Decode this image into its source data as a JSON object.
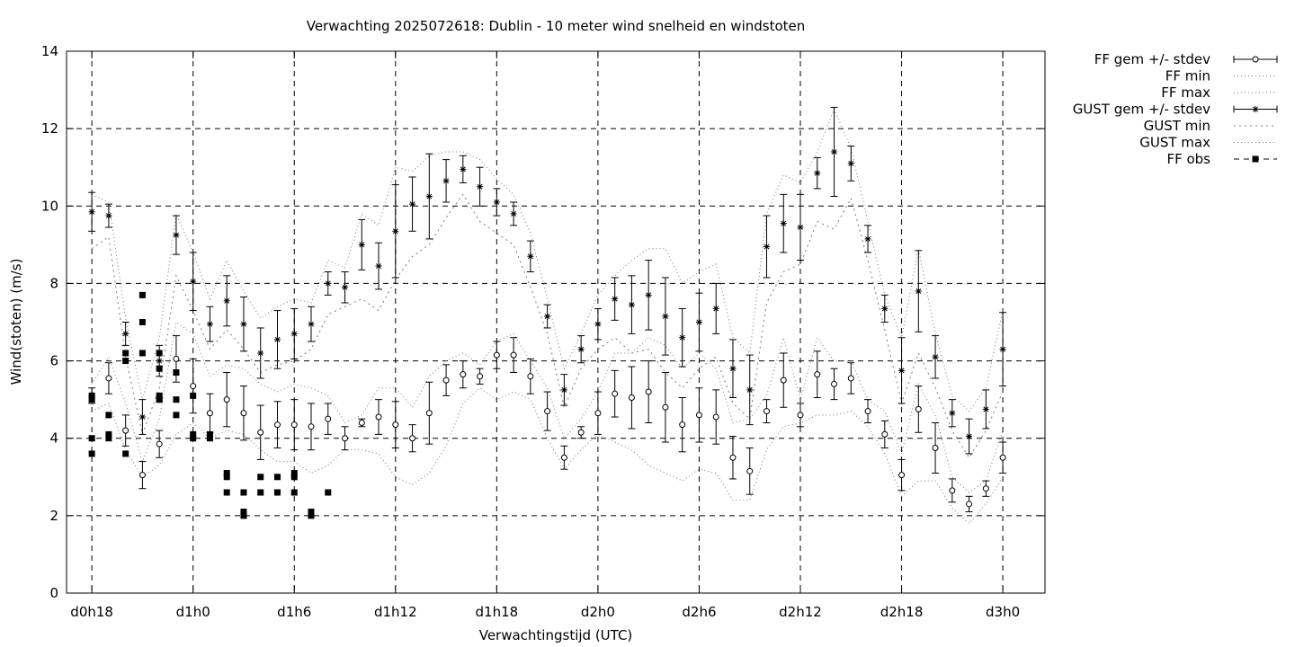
{
  "chart_data": {
    "type": "scatter",
    "title": "Verwachting 2025072618: Dublin - 10 meter wind snelheid en windstoten",
    "xlabel": "Verwachtingstijd (UTC)",
    "ylabel": "Wind(stoten) (m/s)",
    "ylim": [
      0,
      14
    ],
    "xlim": [
      -1.5,
      56.5
    ],
    "x_unit": "hours since d0h18",
    "yticks": [
      0,
      2,
      4,
      6,
      8,
      10,
      12,
      14
    ],
    "xticks": [
      {
        "x": 0,
        "label": "d0h18"
      },
      {
        "x": 6,
        "label": "d1h0"
      },
      {
        "x": 12,
        "label": "d1h6"
      },
      {
        "x": 18,
        "label": "d1h12"
      },
      {
        "x": 24,
        "label": "d1h18"
      },
      {
        "x": 30,
        "label": "d2h0"
      },
      {
        "x": 36,
        "label": "d2h6"
      },
      {
        "x": 42,
        "label": "d2h12"
      },
      {
        "x": 48,
        "label": "d2h18"
      },
      {
        "x": 54,
        "label": "d3h0"
      }
    ],
    "grid": true,
    "legend_position": "right, outside",
    "legend": [
      "FF gem +/- stdev",
      "FF min",
      "FF max",
      "GUST gem +/- stdev",
      "GUST min",
      "GUST max",
      "FF obs"
    ],
    "x": [
      0,
      1,
      2,
      3,
      4,
      5,
      6,
      7,
      8,
      9,
      10,
      11,
      12,
      13,
      14,
      15,
      16,
      17,
      18,
      19,
      20,
      21,
      22,
      23,
      24,
      25,
      26,
      27,
      28,
      29,
      30,
      31,
      32,
      33,
      34,
      35,
      36,
      37,
      38,
      39,
      40,
      41,
      42,
      43,
      44,
      45,
      46,
      47,
      48,
      49,
      50,
      51,
      52,
      53,
      54
    ],
    "series": [
      {
        "name": "FF gem +/- stdev",
        "values": [
          5.1,
          5.55,
          4.2,
          3.05,
          3.85,
          6.05,
          5.35,
          4.65,
          5.0,
          4.65,
          4.15,
          4.35,
          4.35,
          4.3,
          4.5,
          4.0,
          4.4,
          4.55,
          4.35,
          4.0,
          4.65,
          5.5,
          5.65,
          5.6,
          6.15,
          6.15,
          5.6,
          4.7,
          3.5,
          4.15,
          4.65,
          5.15,
          5.05,
          5.2,
          4.8,
          4.35,
          4.6,
          4.55,
          3.5,
          3.15,
          4.7,
          5.5,
          4.6,
          5.65,
          5.4,
          5.55,
          4.7,
          4.1,
          3.05,
          4.75,
          3.75,
          2.65,
          2.3,
          2.7,
          3.5
        ],
        "stdev": [
          0.2,
          0.4,
          0.4,
          0.35,
          0.35,
          0.6,
          0.7,
          0.5,
          0.7,
          0.7,
          0.7,
          0.6,
          0.65,
          0.6,
          0.4,
          0.3,
          0.1,
          0.45,
          0.6,
          0.35,
          0.8,
          0.4,
          0.35,
          0.2,
          0.35,
          0.45,
          0.45,
          0.5,
          0.3,
          0.15,
          0.55,
          0.6,
          0.8,
          0.8,
          0.9,
          0.7,
          0.7,
          0.7,
          0.55,
          0.6,
          0.3,
          0.7,
          0.3,
          0.6,
          0.4,
          0.4,
          0.3,
          0.35,
          0.4,
          0.6,
          0.65,
          0.3,
          0.2,
          0.2,
          0.4
        ]
      },
      {
        "name": "FF min",
        "values": [
          4.7,
          4.9,
          3.7,
          3.0,
          3.3,
          4.1,
          4.4,
          4.0,
          4.2,
          4.1,
          3.7,
          3.4,
          3.4,
          3.1,
          3.3,
          3.7,
          3.7,
          3.6,
          3.0,
          2.8,
          3.1,
          3.8,
          4.9,
          5.3,
          5.0,
          5.2,
          5.0,
          4.0,
          3.2,
          3.7,
          4.1,
          3.9,
          3.7,
          3.3,
          3.1,
          2.9,
          3.2,
          3.1,
          2.4,
          2.4,
          3.7,
          4.3,
          4.4,
          4.6,
          4.6,
          4.7,
          4.3,
          3.6,
          2.5,
          2.9,
          2.9,
          2.2,
          1.8,
          2.3,
          3.0
        ]
      },
      {
        "name": "FF max",
        "values": [
          5.4,
          6.1,
          4.9,
          3.4,
          4.5,
          7.0,
          6.7,
          5.6,
          5.9,
          5.8,
          5.4,
          5.2,
          5.4,
          5.3,
          5.1,
          4.4,
          4.6,
          5.3,
          5.3,
          4.8,
          5.6,
          6.0,
          6.2,
          5.9,
          6.5,
          6.7,
          6.0,
          5.3,
          4.0,
          4.5,
          5.2,
          6.2,
          6.2,
          6.6,
          6.4,
          5.8,
          6.2,
          5.8,
          4.4,
          4.5,
          5.1,
          6.6,
          5.0,
          6.6,
          6.0,
          6.0,
          5.0,
          4.7,
          3.6,
          5.4,
          4.6,
          3.0,
          2.6,
          2.9,
          4.2
        ]
      },
      {
        "name": "GUST gem +/- stdev",
        "values": [
          9.85,
          9.75,
          6.7,
          4.55,
          6.0,
          9.25,
          8.05,
          6.95,
          7.55,
          6.95,
          6.2,
          6.55,
          6.7,
          6.95,
          8.0,
          7.9,
          9.0,
          8.45,
          9.35,
          10.05,
          10.25,
          10.65,
          10.95,
          10.5,
          10.1,
          9.8,
          8.7,
          7.15,
          5.25,
          6.3,
          6.95,
          7.6,
          7.45,
          7.7,
          7.15,
          6.6,
          7.0,
          7.35,
          5.8,
          5.25,
          8.95,
          9.55,
          9.45,
          10.85,
          11.4,
          11.1,
          9.15,
          7.35,
          5.75,
          7.8,
          6.1,
          4.65,
          4.05,
          4.75,
          6.3
        ],
        "stdev": [
          0.5,
          0.3,
          0.3,
          0.45,
          0.4,
          0.5,
          0.75,
          0.45,
          0.65,
          0.7,
          0.65,
          0.75,
          0.65,
          0.45,
          0.3,
          0.4,
          0.65,
          0.6,
          1.2,
          0.7,
          1.1,
          0.55,
          0.35,
          0.5,
          0.35,
          0.3,
          0.4,
          0.3,
          0.4,
          0.35,
          0.4,
          0.55,
          0.75,
          0.9,
          1.0,
          0.75,
          0.75,
          0.65,
          0.75,
          0.9,
          0.8,
          0.75,
          0.85,
          0.4,
          1.15,
          0.45,
          0.35,
          0.35,
          0.85,
          1.05,
          0.55,
          0.35,
          0.45,
          0.5,
          0.95
        ]
      },
      {
        "name": "GUST min",
        "values": [
          8.9,
          9.2,
          6.1,
          4.1,
          5.3,
          8.2,
          7.3,
          6.3,
          6.8,
          6.3,
          5.7,
          5.9,
          6.0,
          6.3,
          7.2,
          7.4,
          7.6,
          7.3,
          8.1,
          8.7,
          9.0,
          9.7,
          10.3,
          9.6,
          9.3,
          9.0,
          7.9,
          6.7,
          4.8,
          5.8,
          6.3,
          6.6,
          6.2,
          6.3,
          5.7,
          5.3,
          5.8,
          6.1,
          4.9,
          4.5,
          7.5,
          8.3,
          8.5,
          9.6,
          9.4,
          10.2,
          8.6,
          6.8,
          4.9,
          6.2,
          5.3,
          4.2,
          3.5,
          4.2,
          5.2
        ]
      },
      {
        "name": "GUST max",
        "values": [
          10.3,
          10.1,
          7.1,
          5.0,
          6.6,
          9.8,
          8.8,
          7.6,
          8.6,
          7.8,
          7.1,
          7.4,
          7.6,
          7.5,
          8.6,
          8.4,
          9.8,
          9.5,
          11.0,
          10.9,
          11.3,
          11.4,
          11.4,
          11.2,
          10.7,
          10.3,
          9.3,
          7.6,
          5.8,
          6.7,
          7.7,
          8.2,
          8.6,
          8.9,
          8.9,
          8.0,
          8.3,
          8.5,
          6.6,
          6.2,
          9.8,
          10.8,
          10.6,
          11.4,
          12.5,
          11.5,
          9.6,
          7.7,
          6.6,
          8.9,
          6.7,
          5.1,
          4.7,
          5.3,
          7.3
        ]
      }
    ],
    "obs": {
      "name": "FF obs",
      "x": [
        0,
        0,
        0,
        0,
        1,
        1,
        1,
        2,
        2,
        2,
        3,
        3,
        3,
        4,
        4,
        4,
        4,
        4,
        5,
        5,
        5,
        6,
        6,
        6,
        7,
        7,
        8,
        8,
        8,
        9,
        9,
        9,
        10,
        10,
        11,
        11,
        12,
        12,
        12,
        13,
        13,
        14
      ],
      "y": [
        5.1,
        4.0,
        3.6,
        5.0,
        4.6,
        4.1,
        4.0,
        6.2,
        6.0,
        3.6,
        7.7,
        7.0,
        6.2,
        6.2,
        5.8,
        5.1,
        5.0,
        5.0,
        5.7,
        5.0,
        4.6,
        5.1,
        4.1,
        4.0,
        4.1,
        4.0,
        3.1,
        3.0,
        2.6,
        2.6,
        2.1,
        2.0,
        3.0,
        2.6,
        3.0,
        2.6,
        3.1,
        3.0,
        2.6,
        2.1,
        2.0,
        2.6
      ]
    }
  }
}
